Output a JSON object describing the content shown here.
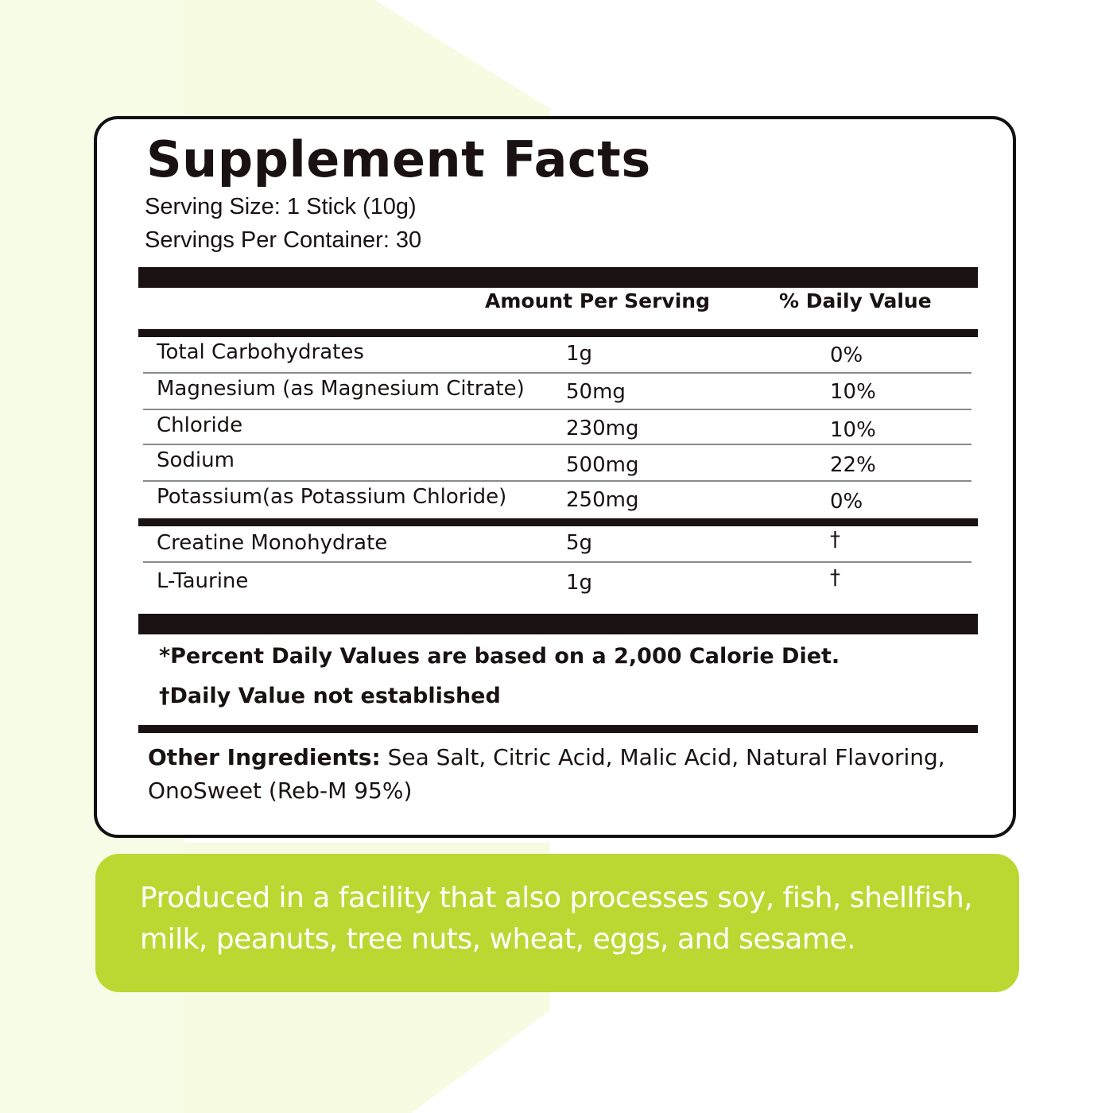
{
  "title": "Supplement Facts",
  "serving_size": "Serving Size: 1 Stick (10g)",
  "servings_per_container": "Servings Per Container: 30",
  "headers": {
    "amount": "Amount Per Serving",
    "daily_value": "% Daily Value"
  },
  "rows": [
    {
      "name": "Total Carbohydrates",
      "amount": "1g",
      "dv": "0%"
    },
    {
      "name": "Magnesium (as Magnesium Citrate)",
      "amount": "50mg",
      "dv": "10%"
    },
    {
      "name": "Chloride",
      "amount": "230mg",
      "dv": "10%"
    },
    {
      "name": "Sodium",
      "amount": "500mg",
      "dv": "22%"
    },
    {
      "name": "Potassium(as Potassium Chloride)",
      "amount": "250mg",
      "dv": "0%"
    },
    {
      "name": "Creatine Monohydrate",
      "amount": "5g",
      "dv": "†"
    },
    {
      "name": "L-Taurine",
      "amount": "1g",
      "dv": "†"
    }
  ],
  "notes": {
    "percent_dv": "*Percent Daily Values are based on a 2,000 Calorie Diet.",
    "not_established": "†Daily Value not established"
  },
  "other_ingredients": {
    "label": "Other Ingredients:",
    "text": " Sea Salt, Citric Acid, Malic Acid, Natural Flavoring, OnoSweet (Reb-M 95%)"
  },
  "allergen_statement": "Produced in a facility that also processes soy, fish, shellfish, milk, peanuts, tree nuts, wheat, eggs, and sesame.",
  "colors": {
    "accent_green": "#bbd832",
    "ink": "#1a1212",
    "background_tint": "#f7fce6"
  }
}
